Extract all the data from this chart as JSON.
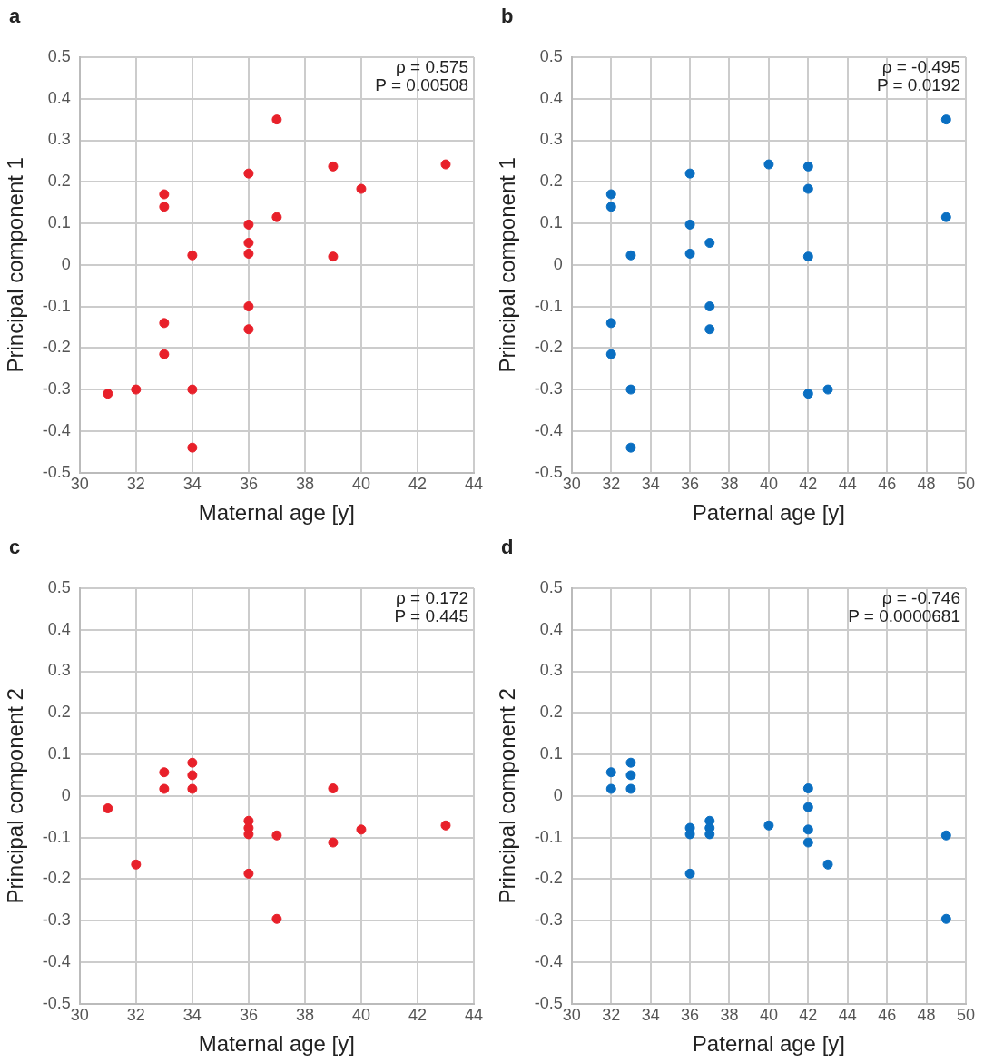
{
  "chart_data": [
    {
      "type": "scatter",
      "title": "a",
      "xlabel": "Maternal age [y]",
      "ylabel": "Principal component 1",
      "annotations": [
        "ρ = 0.575",
        "P = 0.00508"
      ],
      "color": "#e8202a",
      "marker": "circle",
      "grid": true,
      "x": [
        31,
        32,
        33,
        33,
        33,
        33,
        34,
        34,
        34,
        36,
        36,
        36,
        36,
        36,
        36,
        37,
        37,
        39,
        39,
        40,
        43
      ],
      "values": [
        -0.31,
        -0.3,
        0.17,
        0.14,
        -0.14,
        -0.215,
        0.023,
        -0.3,
        -0.44,
        0.22,
        0.097,
        0.053,
        0.027,
        -0.1,
        -0.155,
        0.35,
        0.115,
        0.237,
        0.02,
        0.183,
        0.242
      ],
      "xlim": [
        30,
        44
      ],
      "xticks": [
        30,
        32,
        34,
        36,
        38,
        40,
        42,
        44
      ],
      "ylim": [
        -0.5,
        0.5
      ],
      "yticks": [
        -0.5,
        -0.4,
        -0.3,
        -0.2,
        -0.1,
        0,
        0.1,
        0.2,
        0.3,
        0.4,
        0.5
      ]
    },
    {
      "type": "scatter",
      "title": "b",
      "xlabel": "Paternal age [y]",
      "ylabel": "Principal component 1",
      "annotations": [
        "ρ = -0.495",
        "P = 0.0192"
      ],
      "color": "#0a6fc2",
      "marker": "circle",
      "grid": true,
      "x": [
        32,
        32,
        32,
        32,
        33,
        33,
        33,
        36,
        36,
        36,
        37,
        37,
        37,
        40,
        42,
        42,
        42,
        42,
        43,
        49,
        49
      ],
      "values": [
        0.17,
        0.14,
        -0.14,
        -0.215,
        0.023,
        -0.3,
        -0.44,
        0.22,
        0.097,
        0.027,
        0.053,
        -0.1,
        -0.155,
        0.242,
        0.237,
        0.183,
        0.02,
        -0.31,
        -0.3,
        0.35,
        0.115
      ],
      "xlim": [
        30,
        50
      ],
      "xticks": [
        30,
        32,
        34,
        36,
        38,
        40,
        42,
        44,
        46,
        48,
        50
      ],
      "ylim": [
        -0.5,
        0.5
      ],
      "yticks": [
        -0.5,
        -0.4,
        -0.3,
        -0.2,
        -0.1,
        0,
        0.1,
        0.2,
        0.3,
        0.4,
        0.5
      ]
    },
    {
      "type": "scatter",
      "title": "c",
      "xlabel": "Maternal age [y]",
      "ylabel": "Principal component 2",
      "annotations": [
        "ρ = 0.172",
        "P = 0.445"
      ],
      "color": "#e8202a",
      "marker": "circle",
      "grid": true,
      "x": [
        31,
        32,
        33,
        33,
        34,
        34,
        34,
        36,
        36,
        36,
        36,
        37,
        37,
        39,
        39,
        40,
        43
      ],
      "values": [
        -0.03,
        -0.165,
        0.057,
        0.017,
        0.08,
        0.05,
        0.017,
        -0.06,
        -0.077,
        -0.092,
        -0.187,
        -0.095,
        -0.296,
        0.018,
        -0.112,
        -0.081,
        -0.071
      ],
      "xlim": [
        30,
        44
      ],
      "xticks": [
        30,
        32,
        34,
        36,
        38,
        40,
        42,
        44
      ],
      "ylim": [
        -0.5,
        0.5
      ],
      "yticks": [
        -0.5,
        -0.4,
        -0.3,
        -0.2,
        -0.1,
        0,
        0.1,
        0.2,
        0.3,
        0.4,
        0.5
      ]
    },
    {
      "type": "scatter",
      "title": "d",
      "xlabel": "Paternal age [y]",
      "ylabel": "Principal component 2",
      "annotations": [
        "ρ = -0.746",
        "P = 0.0000681"
      ],
      "color": "#0a6fc2",
      "marker": "circle",
      "grid": true,
      "x": [
        32,
        32,
        33,
        33,
        33,
        36,
        36,
        36,
        37,
        37,
        37,
        40,
        42,
        42,
        42,
        42,
        43,
        49,
        49
      ],
      "values": [
        0.057,
        0.017,
        0.08,
        0.05,
        0.017,
        -0.077,
        -0.092,
        -0.187,
        -0.06,
        -0.077,
        -0.092,
        -0.071,
        0.018,
        -0.027,
        -0.081,
        -0.112,
        -0.165,
        -0.095,
        -0.296
      ],
      "xlim": [
        30,
        50
      ],
      "xticks": [
        30,
        32,
        34,
        36,
        38,
        40,
        42,
        44,
        46,
        48,
        50
      ],
      "ylim": [
        -0.5,
        0.5
      ],
      "yticks": [
        -0.5,
        -0.4,
        -0.3,
        -0.2,
        -0.1,
        0,
        0.1,
        0.2,
        0.3,
        0.4,
        0.5
      ]
    }
  ]
}
